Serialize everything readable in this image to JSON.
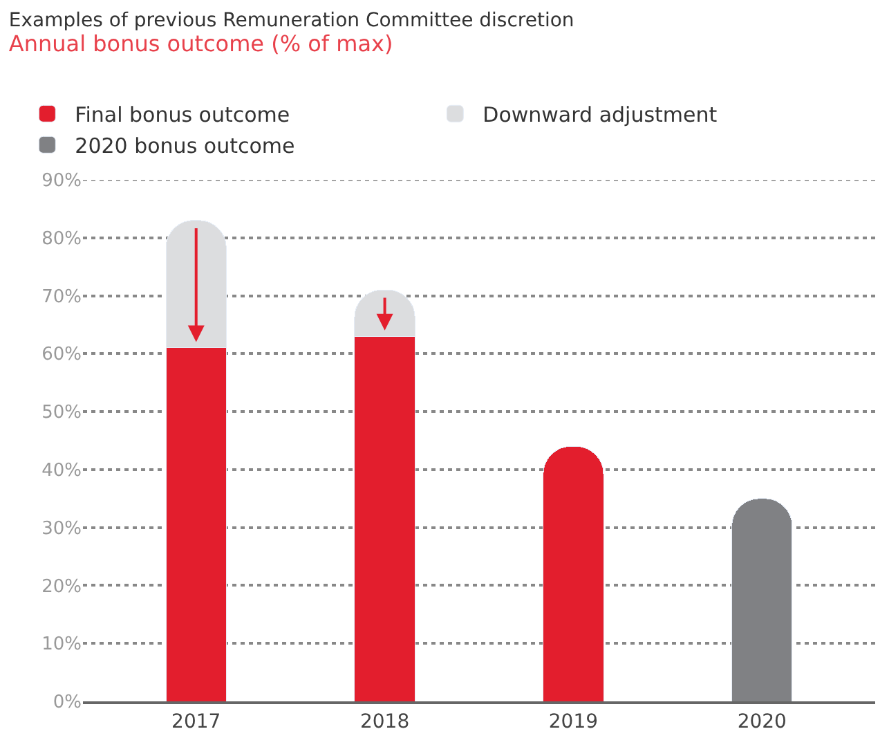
{
  "chart_data": {
    "type": "bar",
    "title": "Examples of previous Remuneration Committee discretion",
    "subtitle": "Annual bonus outcome (% of max)",
    "stacked": true,
    "categories": [
      "2017",
      "2018",
      "2019",
      "2020"
    ],
    "series": [
      {
        "name": "Final bonus outcome",
        "color": "#e31e2d",
        "values": [
          61,
          63,
          44,
          null
        ]
      },
      {
        "name": "Downward adjustment",
        "color": "#dcdddf",
        "values": [
          22,
          8,
          null,
          null
        ]
      },
      {
        "name": "2020 bonus outcome",
        "color": "#808184",
        "values": [
          null,
          null,
          null,
          35
        ]
      }
    ],
    "ylim": [
      0,
      90
    ],
    "yticks": [
      {
        "value": 0,
        "label": "0%"
      },
      {
        "value": 10,
        "label": "10%"
      },
      {
        "value": 20,
        "label": "20%"
      },
      {
        "value": 30,
        "label": "30%"
      },
      {
        "value": 40,
        "label": "40%"
      },
      {
        "value": 50,
        "label": "50%"
      },
      {
        "value": 60,
        "label": "60%"
      },
      {
        "value": 70,
        "label": "70%"
      },
      {
        "value": 80,
        "label": "80%"
      },
      {
        "value": 90,
        "label": "90%"
      }
    ],
    "grid": "y",
    "legend": "top left"
  }
}
